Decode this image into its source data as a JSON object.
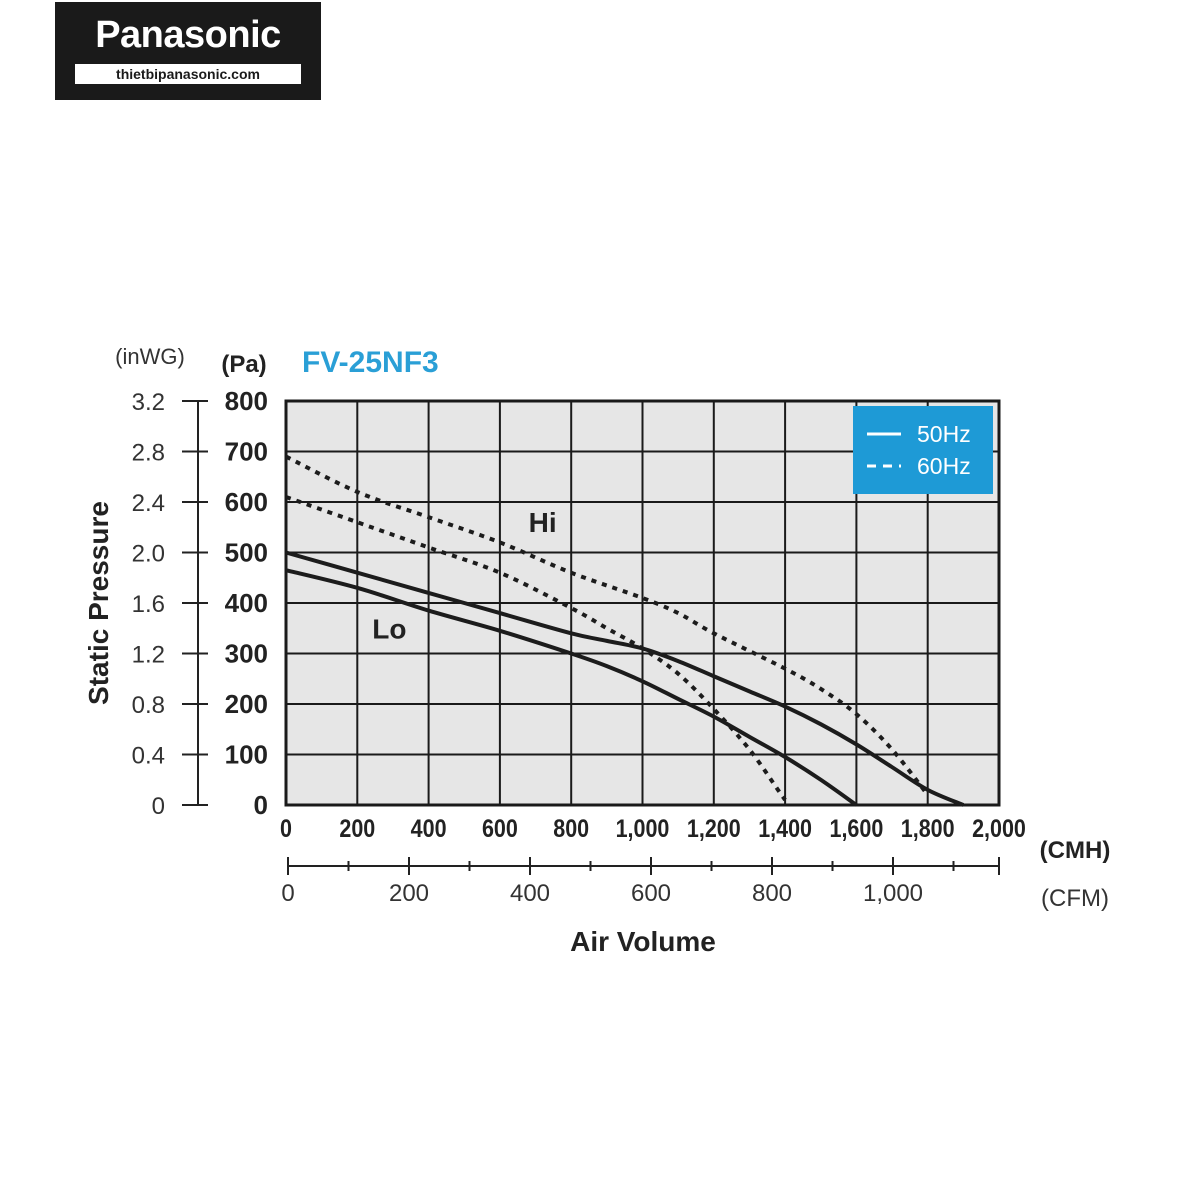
{
  "brand": {
    "name": "Panasonic",
    "website": "thietbipanasonic.com"
  },
  "chart_data": {
    "type": "line",
    "title": "FV-25NF3",
    "title_color": "#2a9fd6",
    "legend_color": "#1e9ad6",
    "plot_background": "#e6e6e6",
    "ylabel": "Static Pressure",
    "xlabel": "Air Volume",
    "y_unit_primary": "(Pa)",
    "y_unit_secondary": "(inWG)",
    "x_unit_primary": "(CMH)",
    "x_unit_secondary": "(CFM)",
    "xlim": [
      0,
      2000
    ],
    "ylim": [
      0,
      800
    ],
    "grid": true,
    "legend_position": "top-right",
    "x_ticks": [
      "0",
      "200",
      "400",
      "600",
      "800",
      "1,000",
      "1,200",
      "1,400",
      "1,600",
      "1,800",
      "2,000"
    ],
    "y_ticks_pa": [
      "0",
      "100",
      "200",
      "300",
      "400",
      "500",
      "600",
      "700",
      "800"
    ],
    "y_ticks_inwg": [
      "0",
      "0.4",
      "0.8",
      "1.2",
      "1.6",
      "2.0",
      "2.4",
      "2.8",
      "3.2"
    ],
    "cfm_ticks": [
      "0",
      "200",
      "400",
      "600",
      "800",
      "1,000"
    ],
    "legend": [
      {
        "label": "50Hz",
        "style": "solid"
      },
      {
        "label": "60Hz",
        "style": "dashed"
      }
    ],
    "curve_labels": [
      {
        "text": "Hi",
        "x": 720,
        "y": 560
      },
      {
        "text": "Lo",
        "x": 290,
        "y": 350
      }
    ],
    "series": [
      {
        "speed": "Hi",
        "frequency": "60Hz",
        "style": "dashed",
        "points": [
          [
            0,
            690
          ],
          [
            200,
            620
          ],
          [
            400,
            570
          ],
          [
            600,
            520
          ],
          [
            800,
            460
          ],
          [
            1000,
            410
          ],
          [
            1100,
            380
          ],
          [
            1200,
            340
          ],
          [
            1400,
            270
          ],
          [
            1500,
            230
          ],
          [
            1600,
            180
          ],
          [
            1700,
            110
          ],
          [
            1800,
            20
          ]
        ]
      },
      {
        "speed": "Lo",
        "frequency": "60Hz",
        "style": "dashed",
        "points": [
          [
            0,
            610
          ],
          [
            200,
            560
          ],
          [
            400,
            510
          ],
          [
            600,
            460
          ],
          [
            800,
            390
          ],
          [
            900,
            350
          ],
          [
            1000,
            310
          ],
          [
            1100,
            260
          ],
          [
            1200,
            190
          ],
          [
            1300,
            110
          ],
          [
            1380,
            30
          ],
          [
            1400,
            10
          ]
        ]
      },
      {
        "speed": "Hi",
        "frequency": "50Hz",
        "style": "solid",
        "points": [
          [
            0,
            500
          ],
          [
            200,
            460
          ],
          [
            400,
            420
          ],
          [
            600,
            380
          ],
          [
            800,
            340
          ],
          [
            900,
            325
          ],
          [
            1000,
            310
          ],
          [
            1100,
            285
          ],
          [
            1200,
            255
          ],
          [
            1300,
            225
          ],
          [
            1400,
            195
          ],
          [
            1500,
            160
          ],
          [
            1600,
            120
          ],
          [
            1700,
            75
          ],
          [
            1800,
            30
          ],
          [
            1900,
            0
          ]
        ]
      },
      {
        "speed": "Lo",
        "frequency": "50Hz",
        "style": "solid",
        "points": [
          [
            0,
            465
          ],
          [
            200,
            430
          ],
          [
            400,
            385
          ],
          [
            600,
            345
          ],
          [
            800,
            300
          ],
          [
            900,
            275
          ],
          [
            1000,
            245
          ],
          [
            1100,
            210
          ],
          [
            1200,
            175
          ],
          [
            1300,
            135
          ],
          [
            1400,
            95
          ],
          [
            1500,
            50
          ],
          [
            1600,
            0
          ]
        ]
      }
    ]
  }
}
